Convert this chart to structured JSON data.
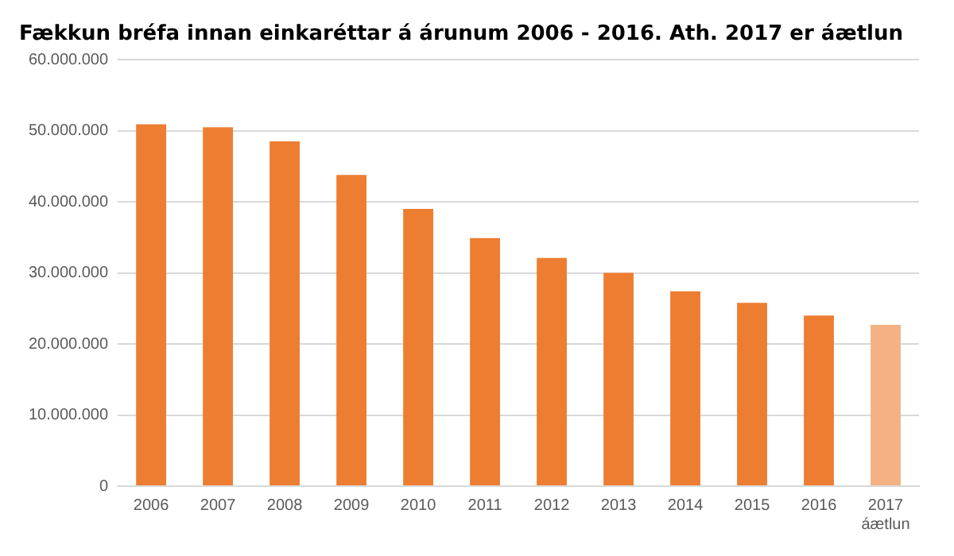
{
  "chart_data": {
    "type": "bar",
    "title": "Fækkun bréfa innan einkaréttar á árunum 2006 - 2016. Ath. 2017 er áætlun",
    "categories": [
      "2006",
      "2007",
      "2008",
      "2009",
      "2010",
      "2011",
      "2012",
      "2013",
      "2014",
      "2015",
      "2016",
      "2017\náætlun"
    ],
    "values": [
      50900000,
      50500000,
      48500000,
      43800000,
      39000000,
      34900000,
      32100000,
      30000000,
      27400000,
      25800000,
      24000000,
      22700000
    ],
    "colors": [
      "#ed7d31",
      "#ed7d31",
      "#ed7d31",
      "#ed7d31",
      "#ed7d31",
      "#ed7d31",
      "#ed7d31",
      "#ed7d31",
      "#ed7d31",
      "#ed7d31",
      "#ed7d31",
      "#f4b183"
    ],
    "ylim": [
      0,
      60000000
    ],
    "yticks": [
      {
        "value": 0,
        "label": "0"
      },
      {
        "value": 10000000,
        "label": "10.000.000"
      },
      {
        "value": 20000000,
        "label": "20.000.000"
      },
      {
        "value": 30000000,
        "label": "30.000.000"
      },
      {
        "value": 40000000,
        "label": "40.000.000"
      },
      {
        "value": 50000000,
        "label": "50.000.000"
      },
      {
        "value": 60000000,
        "label": "60.000.000"
      }
    ],
    "grid": "y",
    "legend": false
  }
}
